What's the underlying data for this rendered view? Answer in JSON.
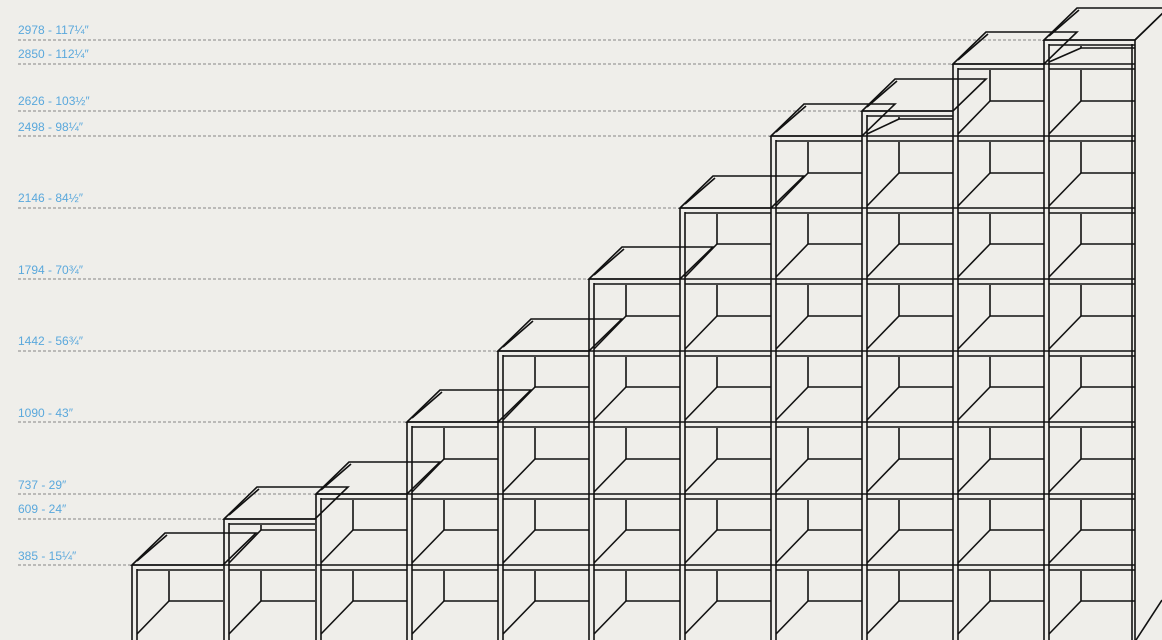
{
  "height_labels": [
    "2978 - 117¼″",
    "2850 - 112¼″",
    "2626 - 103½″",
    "2498 - 98¼″",
    "2146 - 84½″",
    "1794 - 70¾″",
    "1442 - 56¾″",
    "1090 - 43″",
    "737 - 29″",
    "609 - 24″",
    "385 - 15¼″"
  ]
}
